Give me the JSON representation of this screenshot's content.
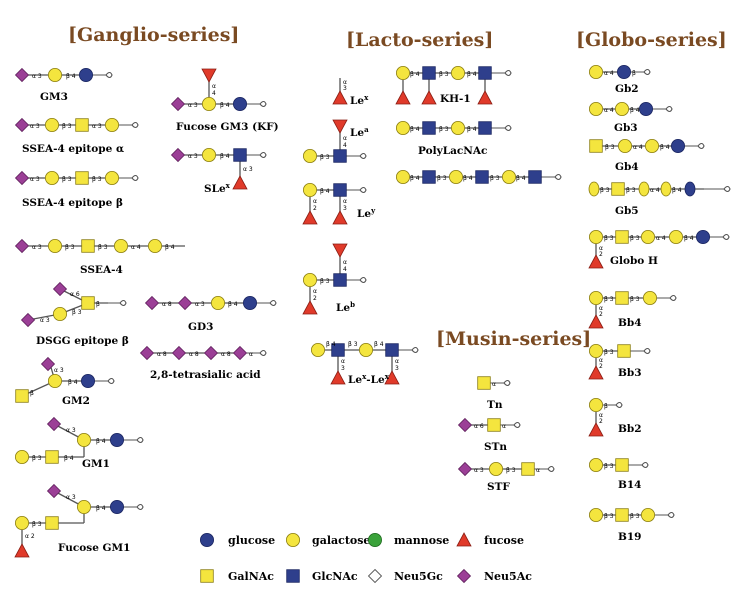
{
  "headers": {
    "ganglio": "[Ganglio-series]",
    "lacto": "[Lacto-series]",
    "globo": "[Globo-series]",
    "musin": "[Musin-series]"
  },
  "colors": {
    "glucose": "#2e3f8c",
    "galactose": "#f4e53e",
    "mannose": "#3aa23a",
    "fucose": "#e03a2a",
    "galnac": "#f4e53e",
    "glcnac": "#2e3f8c",
    "neu5gc": "#ffffff",
    "neu5ac": "#9b3f96",
    "header": "#7a4a22"
  },
  "legend": [
    {
      "icon": "glucose-circle-icon",
      "label": "glucose"
    },
    {
      "icon": "galactose-circle-icon",
      "label": "galactose"
    },
    {
      "icon": "mannose-circle-icon",
      "label": "mannose"
    },
    {
      "icon": "fucose-triangle-icon",
      "label": "fucose"
    },
    {
      "icon": "galnac-square-icon",
      "label": "GalNAc"
    },
    {
      "icon": "glcnac-square-icon",
      "label": "GlcNAc"
    },
    {
      "icon": "neu5gc-diamond-icon",
      "label": "Neu5Gc"
    },
    {
      "icon": "neu5ac-diamond-icon",
      "label": "Neu5Ac"
    }
  ],
  "glycans": {
    "gm3": "GM3",
    "ssea4a": "SSEA-4 epitope α",
    "ssea4b": "SSEA-4 epitope β",
    "ssea4": "SSEA-4",
    "dsgg": "DSGG epitope β",
    "gm2": "GM2",
    "gm1": "GM1",
    "fucgm1": "Fucose GM1",
    "fucgm3": "Fucose GM3 (KF)",
    "slex": "SLe",
    "slex_sup": "x",
    "gd3": "GD3",
    "tetra": "2,8-tetrasialic acid",
    "lex": "Le",
    "lex_sup": "x",
    "lea": "Le",
    "lea_sup": "a",
    "ley": "Le",
    "ley_sup": "y",
    "leb": "Le",
    "leb_sup": "b",
    "lexlex": "Le",
    "lexlex_sup1": "x",
    "lexlex_mid": "-Le",
    "lexlex_sup2": "x",
    "kh1": "KH-1",
    "polylacnac": "PolyLacNAc",
    "gb2": "Gb2",
    "gb3": "Gb3",
    "gb4": "Gb4",
    "gb5": "Gb5",
    "globoh": "Globo H",
    "bb4": "Bb4",
    "bb3": "Bb3",
    "bb2": "Bb2",
    "b14": "B14",
    "b19": "B19",
    "tn": "Tn",
    "stn": "STn",
    "stf": "STF"
  }
}
